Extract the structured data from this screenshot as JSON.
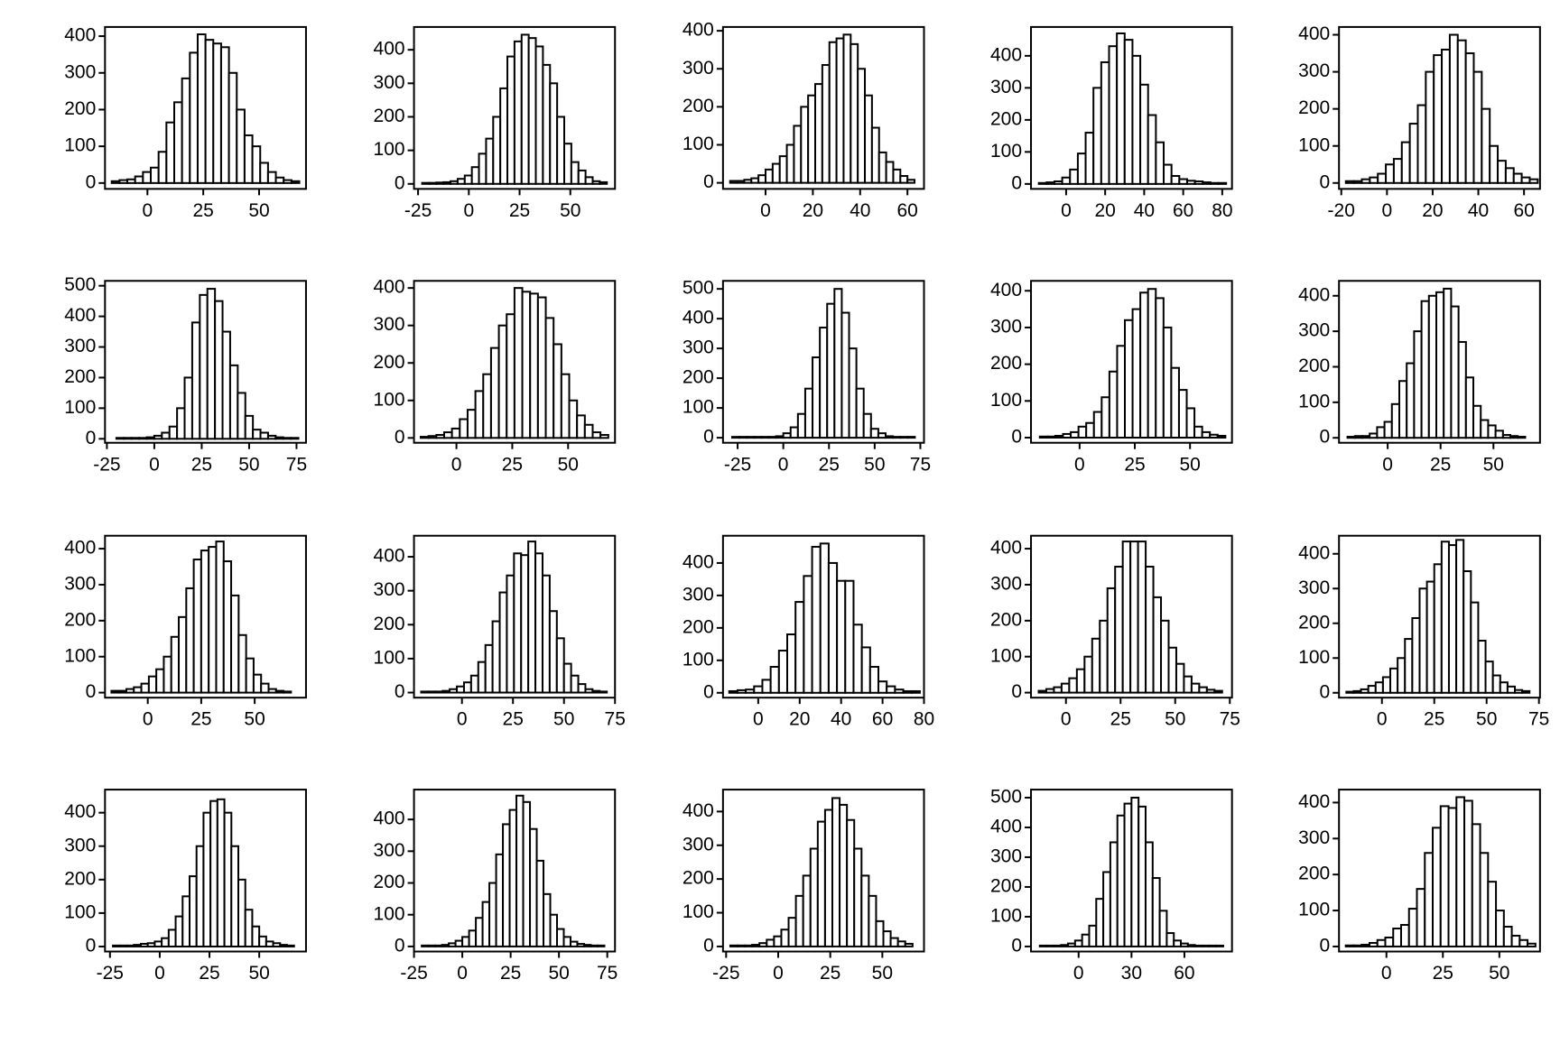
{
  "chart_data": [
    {
      "type": "histogram",
      "bins": [
        -16,
        -12.5,
        -9,
        -5.5,
        -2,
        1.5,
        5,
        8.5,
        12,
        15.5,
        19,
        22.5,
        26,
        29.5,
        33,
        36.5,
        40,
        43.5,
        47,
        50.5,
        54,
        57.5,
        61,
        64.5,
        68
      ],
      "values": [
        5,
        8,
        10,
        18,
        30,
        42,
        85,
        165,
        220,
        285,
        355,
        405,
        390,
        380,
        370,
        300,
        200,
        130,
        100,
        55,
        30,
        15,
        8,
        5
      ],
      "xlim": [
        -19,
        71
      ],
      "ylim": [
        -16,
        425
      ],
      "xticks": [
        0,
        25,
        50
      ],
      "yticks": [
        0,
        100,
        200,
        300,
        400
      ]
    },
    {
      "type": "histogram",
      "bins": [
        -23,
        -19.5,
        -16,
        -12.5,
        -9,
        -5.5,
        -2,
        1.5,
        5,
        8.5,
        12,
        15.5,
        19,
        22.5,
        26,
        29.5,
        33,
        36.5,
        40,
        43.5,
        47,
        50.5,
        54,
        57.5,
        61,
        64.5,
        68
      ],
      "values": [
        3,
        3,
        4,
        5,
        8,
        15,
        25,
        50,
        90,
        135,
        200,
        285,
        380,
        425,
        445,
        435,
        410,
        355,
        300,
        200,
        120,
        65,
        40,
        20,
        8,
        5
      ],
      "xlim": [
        -27,
        72
      ],
      "ylim": [
        -15,
        468
      ],
      "xticks": [
        -25,
        0,
        25,
        50
      ],
      "yticks": [
        0,
        100,
        200,
        300,
        400
      ]
    },
    {
      "type": "histogram",
      "bins": [
        -15,
        -12,
        -9,
        -6,
        -3,
        0,
        3,
        6,
        9,
        12,
        15,
        18,
        21,
        24,
        27,
        30,
        33,
        36,
        39,
        42,
        45,
        48,
        51,
        54,
        57,
        60,
        63
      ],
      "values": [
        5,
        5,
        8,
        12,
        20,
        35,
        50,
        70,
        100,
        150,
        200,
        230,
        260,
        310,
        370,
        380,
        390,
        365,
        300,
        230,
        145,
        80,
        55,
        35,
        18,
        8
      ],
      "xlim": [
        -18,
        67
      ],
      "ylim": [
        -16,
        410
      ],
      "xticks": [
        0,
        20,
        40,
        60
      ],
      "yticks": [
        0,
        100,
        200,
        300,
        400
      ]
    },
    {
      "type": "histogram",
      "bins": [
        -14,
        -10,
        -6,
        -2,
        2,
        6,
        10,
        14,
        18,
        22,
        26,
        30,
        34,
        38,
        42,
        46,
        50,
        54,
        58,
        62,
        66,
        70,
        74,
        78,
        82
      ],
      "values": [
        3,
        5,
        8,
        20,
        45,
        95,
        160,
        300,
        380,
        430,
        470,
        450,
        400,
        310,
        215,
        130,
        60,
        25,
        15,
        10,
        8,
        5,
        3,
        3
      ],
      "xlim": [
        -18,
        85
      ],
      "ylim": [
        -15.5,
        490
      ],
      "xticks": [
        0,
        20,
        40,
        60,
        80
      ],
      "yticks": [
        0,
        100,
        200,
        300,
        400
      ]
    },
    {
      "type": "histogram",
      "bins": [
        -18,
        -14.5,
        -11,
        -7.5,
        -4,
        -0.5,
        3,
        6.5,
        10,
        13.5,
        17,
        20.5,
        24,
        27.5,
        31,
        34.5,
        38,
        41.5,
        45,
        48.5,
        52,
        55.5,
        59,
        62.5,
        66
      ],
      "values": [
        5,
        5,
        10,
        15,
        25,
        50,
        65,
        110,
        160,
        210,
        300,
        345,
        360,
        400,
        385,
        350,
        300,
        200,
        100,
        60,
        40,
        25,
        15,
        10
      ],
      "xlim": [
        -21,
        67
      ],
      "ylim": [
        -16,
        421
      ],
      "xticks": [
        -20,
        0,
        20,
        40,
        60
      ],
      "yticks": [
        0,
        100,
        200,
        300,
        400
      ]
    },
    {
      "type": "histogram",
      "bins": [
        -20,
        -16,
        -12,
        -8,
        -4,
        0,
        4,
        8,
        12,
        16,
        20,
        24,
        28,
        32,
        36,
        40,
        44,
        48,
        52,
        56,
        60,
        64,
        68,
        72,
        76
      ],
      "values": [
        3,
        3,
        3,
        3,
        5,
        10,
        20,
        40,
        100,
        200,
        380,
        470,
        490,
        450,
        350,
        240,
        150,
        75,
        30,
        20,
        10,
        5,
        3,
        3
      ],
      "xlim": [
        -26,
        80
      ],
      "ylim": [
        -13,
        516
      ],
      "xticks": [
        -25,
        0,
        25,
        50,
        75
      ],
      "yticks": [
        0,
        100,
        200,
        300,
        400,
        500
      ]
    },
    {
      "type": "histogram",
      "bins": [
        -16,
        -12.5,
        -9,
        -5.5,
        -2,
        1.5,
        5,
        8.5,
        12,
        15.5,
        19,
        22.5,
        26,
        29.5,
        33,
        36.5,
        40,
        43.5,
        47,
        50.5,
        54,
        57.5,
        61,
        64.5,
        68
      ],
      "values": [
        3,
        5,
        8,
        15,
        25,
        50,
        75,
        125,
        170,
        240,
        300,
        330,
        400,
        390,
        385,
        375,
        320,
        250,
        170,
        100,
        60,
        35,
        15,
        8
      ],
      "xlim": [
        -19,
        71
      ],
      "ylim": [
        -13,
        419
      ],
      "xticks": [
        0,
        25,
        50
      ],
      "yticks": [
        0,
        100,
        200,
        300,
        400
      ]
    },
    {
      "type": "histogram",
      "bins": [
        -28,
        -24,
        -20,
        -16,
        -12,
        -8,
        -4,
        0,
        4,
        8,
        12,
        16,
        20,
        24,
        28,
        32,
        36,
        40,
        44,
        48,
        52,
        56,
        60,
        64,
        68,
        72
      ],
      "values": [
        3,
        3,
        3,
        3,
        3,
        3,
        5,
        15,
        35,
        80,
        165,
        270,
        370,
        450,
        500,
        420,
        300,
        165,
        80,
        30,
        15,
        5,
        3,
        3,
        3
      ],
      "xlim": [
        -33,
        77
      ],
      "ylim": [
        -17,
        527
      ],
      "xticks": [
        -25,
        0,
        25,
        50,
        75
      ],
      "yticks": [
        0,
        100,
        200,
        300,
        400,
        500
      ]
    },
    {
      "type": "histogram",
      "bins": [
        -18,
        -14.5,
        -11,
        -7.5,
        -4,
        -0.5,
        3,
        6.5,
        10,
        13.5,
        17,
        20.5,
        24,
        27.5,
        31,
        34.5,
        38,
        41.5,
        45,
        48.5,
        52,
        55.5,
        59,
        62.5,
        66
      ],
      "values": [
        3,
        3,
        5,
        10,
        15,
        30,
        40,
        70,
        110,
        180,
        250,
        320,
        350,
        395,
        405,
        380,
        300,
        190,
        130,
        80,
        30,
        15,
        8,
        5
      ],
      "xlim": [
        -22,
        69
      ],
      "ylim": [
        -14,
        427
      ],
      "xticks": [
        0,
        25,
        50
      ],
      "yticks": [
        0,
        100,
        200,
        300,
        400
      ]
    },
    {
      "type": "histogram",
      "bins": [
        -19,
        -15.5,
        -12,
        -8.5,
        -5,
        -1.5,
        2,
        5.5,
        9,
        12.5,
        16,
        19.5,
        23,
        26.5,
        30,
        33.5,
        37,
        40.5,
        44,
        47.5,
        51,
        54.5,
        58,
        61.5,
        65
      ],
      "values": [
        3,
        5,
        5,
        12,
        30,
        45,
        95,
        160,
        210,
        300,
        385,
        400,
        410,
        420,
        370,
        270,
        170,
        90,
        50,
        35,
        20,
        8,
        5,
        3
      ],
      "xlim": [
        -23,
        72
      ],
      "ylim": [
        -14,
        442
      ],
      "xticks": [
        0,
        25,
        50
      ],
      "yticks": [
        0,
        100,
        200,
        300,
        400
      ]
    },
    {
      "type": "histogram",
      "bins": [
        -17,
        -13.5,
        -10,
        -6.5,
        -3,
        0.5,
        4,
        7.5,
        11,
        14.5,
        18,
        21.5,
        25,
        28.5,
        32,
        35.5,
        39,
        42.5,
        46,
        49.5,
        53,
        56.5,
        60,
        63.5,
        67
      ],
      "values": [
        5,
        5,
        10,
        15,
        25,
        45,
        65,
        100,
        155,
        210,
        290,
        370,
        395,
        405,
        420,
        365,
        270,
        160,
        95,
        50,
        25,
        10,
        5,
        3
      ],
      "xlim": [
        -20,
        74
      ],
      "ylim": [
        -14,
        436
      ],
      "xticks": [
        0,
        25,
        50
      ],
      "yticks": [
        0,
        100,
        200,
        300,
        400
      ]
    },
    {
      "type": "histogram",
      "bins": [
        -20,
        -16.5,
        -13,
        -9.5,
        -6,
        -2.5,
        1,
        4.5,
        8,
        11.5,
        15,
        18.5,
        22,
        25.5,
        29,
        32.5,
        36,
        39.5,
        43,
        46.5,
        50,
        53.5,
        57,
        60.5,
        64,
        67.5,
        71
      ],
      "values": [
        3,
        3,
        3,
        5,
        10,
        18,
        30,
        50,
        90,
        140,
        210,
        295,
        345,
        410,
        405,
        445,
        410,
        345,
        240,
        160,
        85,
        50,
        25,
        10,
        5,
        3
      ],
      "xlim": [
        -23.5,
        75
      ],
      "ylim": [
        -15,
        462
      ],
      "xticks": [
        0,
        25,
        50,
        75
      ],
      "yticks": [
        0,
        100,
        200,
        300,
        400
      ]
    },
    {
      "type": "histogram",
      "bins": [
        -14,
        -10,
        -6,
        -2,
        2,
        6,
        10,
        14,
        18,
        22,
        26,
        30,
        34,
        38,
        42,
        46,
        50,
        54,
        58,
        62,
        66,
        70,
        74,
        78
      ],
      "values": [
        5,
        8,
        10,
        20,
        40,
        80,
        130,
        180,
        280,
        360,
        450,
        460,
        400,
        345,
        345,
        210,
        140,
        80,
        35,
        20,
        10,
        5,
        5
      ],
      "xlim": [
        -17,
        80
      ],
      "ylim": [
        -15,
        484
      ],
      "xticks": [
        0,
        20,
        40,
        60,
        80
      ],
      "yticks": [
        0,
        100,
        200,
        300,
        400
      ]
    },
    {
      "type": "histogram",
      "bins": [
        -12.5,
        -9,
        -5.5,
        -2,
        1.5,
        5,
        8.5,
        12,
        15.5,
        19,
        22.5,
        26,
        29.5,
        33,
        36.5,
        40,
        43.5,
        47,
        50.5,
        54,
        57.5,
        61,
        64.5,
        68,
        71.5
      ],
      "values": [
        5,
        10,
        15,
        25,
        40,
        65,
        100,
        150,
        200,
        290,
        350,
        420,
        420,
        420,
        350,
        265,
        200,
        125,
        80,
        45,
        25,
        15,
        8,
        5
      ],
      "xlim": [
        -16,
        76
      ],
      "ylim": [
        -14,
        436
      ],
      "xticks": [
        0,
        25,
        50,
        75
      ],
      "yticks": [
        0,
        100,
        200,
        300,
        400
      ]
    },
    {
      "type": "histogram",
      "bins": [
        -17,
        -13.5,
        -10,
        -6.5,
        -3,
        0.5,
        4,
        7.5,
        11,
        14.5,
        18,
        21.5,
        25,
        28.5,
        32,
        35.5,
        39,
        42.5,
        46,
        49.5,
        53,
        56.5,
        60,
        63.5,
        67,
        70.5
      ],
      "values": [
        3,
        5,
        10,
        20,
        30,
        45,
        70,
        100,
        155,
        215,
        300,
        320,
        370,
        435,
        425,
        440,
        350,
        260,
        150,
        90,
        50,
        30,
        18,
        8,
        5
      ],
      "xlim": [
        -20.5,
        75.5
      ],
      "ylim": [
        -14,
        452
      ],
      "xticks": [
        0,
        25,
        50,
        75
      ],
      "yticks": [
        0,
        100,
        200,
        300,
        400
      ]
    },
    {
      "type": "histogram",
      "bins": [
        -23.5,
        -20,
        -16.5,
        -13,
        -9.5,
        -6,
        -2.5,
        1,
        4.5,
        8,
        11.5,
        15,
        18.5,
        22,
        25.5,
        29,
        32.5,
        36,
        39.5,
        43,
        46.5,
        50,
        53.5,
        57,
        60.5,
        64,
        67.5
      ],
      "values": [
        3,
        3,
        3,
        5,
        8,
        10,
        15,
        25,
        50,
        90,
        150,
        210,
        300,
        400,
        435,
        440,
        400,
        300,
        200,
        110,
        60,
        30,
        15,
        10,
        5,
        3
      ],
      "xlim": [
        -27.5,
        73.5
      ],
      "ylim": [
        -15,
        469
      ],
      "xticks": [
        -25,
        0,
        25,
        50
      ],
      "yticks": [
        0,
        100,
        200,
        300,
        400
      ]
    },
    {
      "type": "histogram",
      "bins": [
        -21,
        -17.5,
        -14,
        -10.5,
        -7,
        -3.5,
        0,
        3.5,
        7,
        10.5,
        14,
        17.5,
        21,
        24.5,
        28,
        31.5,
        35,
        38.5,
        42,
        45.5,
        49,
        52.5,
        56,
        59.5,
        63,
        66.5,
        70,
        73.5
      ],
      "values": [
        3,
        3,
        3,
        5,
        10,
        18,
        30,
        50,
        90,
        140,
        200,
        290,
        385,
        430,
        475,
        455,
        370,
        270,
        165,
        100,
        55,
        30,
        15,
        8,
        5,
        3,
        3
      ],
      "xlim": [
        -25,
        79
      ],
      "ylim": [
        -16,
        494
      ],
      "xticks": [
        -25,
        0,
        25,
        50,
        75
      ],
      "yticks": [
        0,
        100,
        200,
        300,
        400
      ]
    },
    {
      "type": "histogram",
      "bins": [
        -23,
        -19.5,
        -16,
        -12.5,
        -9,
        -5.5,
        -2,
        1.5,
        5,
        8.5,
        12,
        15.5,
        19,
        22.5,
        26,
        29.5,
        33,
        36.5,
        40,
        43.5,
        47,
        50.5,
        54,
        57.5,
        61,
        64.5
      ],
      "values": [
        3,
        3,
        3,
        5,
        10,
        20,
        30,
        50,
        85,
        150,
        210,
        290,
        370,
        405,
        440,
        420,
        375,
        290,
        210,
        150,
        75,
        45,
        25,
        15,
        8
      ],
      "xlim": [
        -26.5,
        70
      ],
      "ylim": [
        -15,
        465
      ],
      "xticks": [
        -25,
        0,
        25,
        50
      ],
      "yticks": [
        0,
        100,
        200,
        300,
        400
      ]
    },
    {
      "type": "histogram",
      "bins": [
        -22,
        -18,
        -14,
        -10,
        -6,
        -2,
        2,
        6,
        10,
        14,
        18,
        22,
        26,
        30,
        34,
        38,
        42,
        46,
        50,
        54,
        58,
        62,
        66,
        70,
        74,
        78,
        82
      ],
      "values": [
        3,
        3,
        3,
        5,
        10,
        20,
        40,
        70,
        160,
        250,
        350,
        440,
        480,
        500,
        470,
        350,
        230,
        120,
        45,
        20,
        10,
        5,
        3,
        3,
        3,
        3
      ],
      "xlim": [
        -27,
        87
      ],
      "ylim": [
        -17,
        527
      ],
      "xticks": [
        0,
        30,
        60
      ],
      "yticks": [
        0,
        100,
        200,
        300,
        400,
        500
      ]
    },
    {
      "type": "histogram",
      "bins": [
        -18,
        -14.5,
        -11,
        -7.5,
        -4,
        -0.5,
        3,
        6.5,
        10,
        13.5,
        17,
        20.5,
        24,
        27.5,
        31,
        34.5,
        38,
        41.5,
        45,
        48.5,
        52,
        55.5,
        59,
        62.5,
        66
      ],
      "values": [
        3,
        3,
        5,
        10,
        18,
        25,
        50,
        60,
        105,
        160,
        260,
        330,
        390,
        385,
        415,
        405,
        340,
        260,
        180,
        100,
        55,
        30,
        18,
        8
      ],
      "xlim": [
        -21,
        68
      ],
      "ylim": [
        -14,
        436
      ],
      "xticks": [
        0,
        25,
        50
      ],
      "yticks": [
        0,
        100,
        200,
        300,
        400
      ]
    }
  ]
}
